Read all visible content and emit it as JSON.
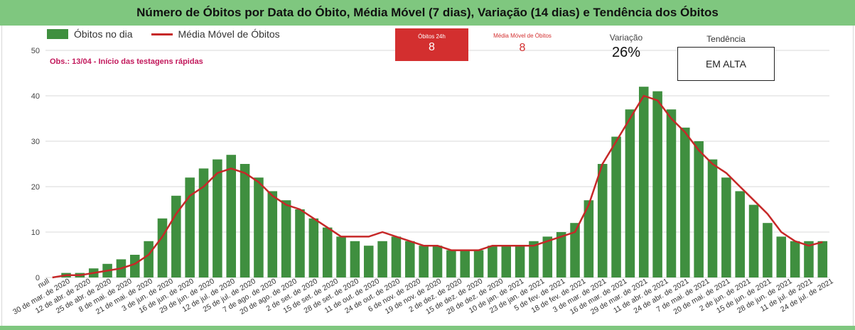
{
  "header": {
    "title": "Número de Óbitos por Data do Óbito, Média Móvel (7 dias), Variação (14 dias) e Tendência dos Óbitos"
  },
  "legend": {
    "bars": "Óbitos no dia",
    "line": "Média Móvel de Óbitos"
  },
  "obs": "Obs.: 13/04 - Início das testagens rápidas",
  "cards": {
    "obitos24h": {
      "label": "Óbitos 24h",
      "value": "8"
    },
    "media_movel": {
      "label": "Média Móvel de Óbitos",
      "value": "8"
    },
    "variacao": {
      "label": "Variação",
      "value": "26%"
    },
    "tendencia": {
      "label": "Tendência",
      "value": "EM ALTA"
    }
  },
  "colors": {
    "bars": "#3f8f3f",
    "line": "#c62828",
    "accent": "#7fc77f",
    "card": "#d32f2f"
  },
  "chart_data": {
    "type": "bar",
    "title": "Número de Óbitos por Data do Óbito, Média Móvel (7 dias), Variação (14 dias) e Tendência dos Óbitos",
    "ylim": [
      0,
      50
    ],
    "yticks": [
      0,
      10,
      20,
      30,
      40,
      50
    ],
    "grid": true,
    "legend_position": "top-left",
    "x_tick_labels": [
      "null",
      "30 de mar. de 2020",
      "12 de abr. de 2020",
      "25 de abr. de 2020",
      "8 de mai. de 2020",
      "21 de mai. de 2020",
      "3 de jun. de 2020",
      "16 de jun. de 2020",
      "29 de jun. de 2020",
      "12 de jul. de 2020",
      "25 de jul. de 2020",
      "7 de ago. de 2020",
      "20 de ago. de 2020",
      "2 de set. de 2020",
      "15 de set. de 2020",
      "28 de set. de 2020",
      "11 de out. de 2020",
      "24 de out. de 2020",
      "6 de nov. de 2020",
      "19 de nov. de 2020",
      "2 de dez. de 2020",
      "15 de dez. de 2020",
      "28 de dez. de 2020",
      "10 de jan. de 2021",
      "23 de jan. de 2021",
      "5 de fev. de 2021",
      "18 de fev. de 2021",
      "3 de mar. de 2021",
      "16 de mar. de 2021",
      "29 de mar. de 2021",
      "11 de abr. de 2021",
      "24 de abr. de 2021",
      "7 de mai. de 2021",
      "20 de mai. de 2021",
      "2 de jun. de 2021",
      "15 de jun. de 2021",
      "28 de jun. de 2021",
      "11 de jul. de 2021",
      "24 de jul. de 2021"
    ],
    "series": [
      {
        "name": "Óbitos no dia",
        "kind": "bar",
        "values": [
          0,
          1,
          1,
          2,
          3,
          4,
          5,
          8,
          13,
          18,
          22,
          24,
          26,
          27,
          25,
          22,
          19,
          17,
          15,
          13,
          11,
          9,
          8,
          7,
          8,
          9,
          8,
          7,
          7,
          6,
          6,
          6,
          7,
          7,
          7,
          8,
          9,
          10,
          12,
          17,
          25,
          31,
          37,
          42,
          41,
          37,
          33,
          30,
          26,
          22,
          19,
          16,
          12,
          9,
          8,
          8,
          8
        ]
      },
      {
        "name": "Média Móvel de Óbitos",
        "kind": "line",
        "values": [
          0,
          0.5,
          0.5,
          1,
          1.5,
          2,
          3,
          5,
          9,
          14,
          18,
          20,
          23,
          24,
          23,
          21,
          18,
          16,
          15,
          13,
          11,
          9,
          9,
          9,
          10,
          9,
          8,
          7,
          7,
          6,
          6,
          6,
          7,
          7,
          7,
          7,
          8,
          9,
          10,
          16,
          25,
          30,
          35,
          40,
          39,
          35,
          32,
          28,
          25,
          23,
          20,
          17,
          14,
          10,
          8,
          7,
          7.8
        ]
      }
    ]
  }
}
